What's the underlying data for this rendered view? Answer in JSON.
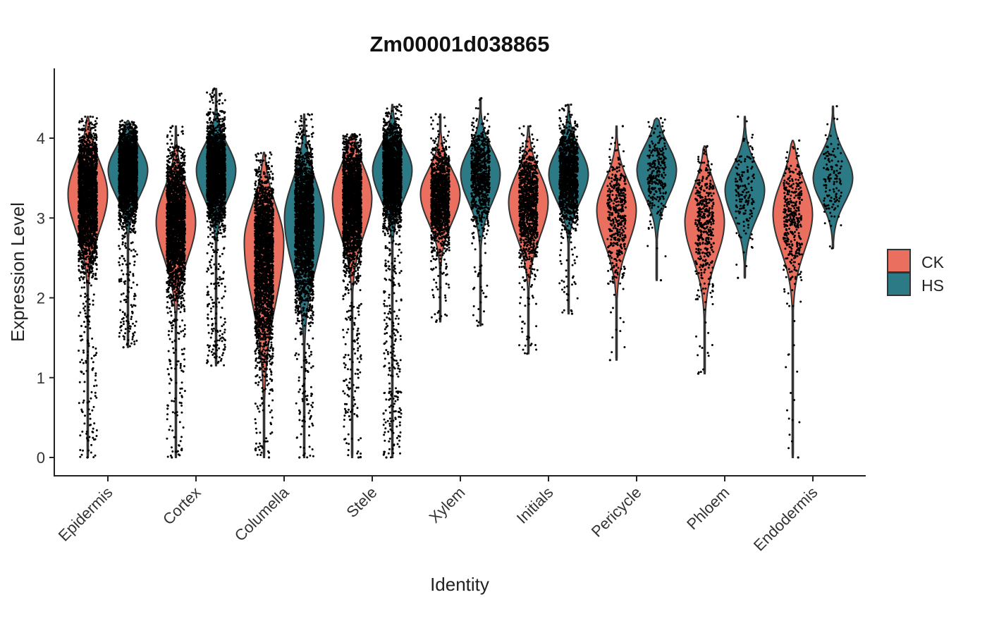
{
  "chart_data": {
    "type": "violin",
    "title": "Zm00001d038865",
    "xlabel": "Identity",
    "ylabel": "Expression Level",
    "ylim": [
      -0.23,
      4.87
    ],
    "yticks": [
      "0",
      "1",
      "2",
      "3",
      "4"
    ],
    "grid": false,
    "legend_position": "right",
    "categories": [
      "Epidermis",
      "Cortex",
      "Columella",
      "Stele",
      "Xylem",
      "Initials",
      "Pericycle",
      "Phloem",
      "Endodermis"
    ],
    "series": [
      {
        "name": "CK",
        "color": "#EB6F5F",
        "violins": [
          {
            "min": 0,
            "max": 4.27,
            "peak": 3.3,
            "sd_low": 0.45,
            "sd_high": 0.4,
            "n_points": 2600
          },
          {
            "min": 0,
            "max": 4.15,
            "peak": 2.95,
            "sd_low": 0.45,
            "sd_high": 0.4,
            "n_points": 2600
          },
          {
            "min": 0,
            "max": 3.82,
            "peak": 2.7,
            "sd_low": 0.75,
            "sd_high": 0.45,
            "n_points": 2600
          },
          {
            "min": 0,
            "max": 4.05,
            "peak": 3.25,
            "sd_low": 0.45,
            "sd_high": 0.38,
            "n_points": 2400
          },
          {
            "min": 1.7,
            "max": 4.3,
            "peak": 3.3,
            "sd_low": 0.35,
            "sd_high": 0.3,
            "n_points": 1400
          },
          {
            "min": 1.3,
            "max": 4.15,
            "peak": 3.2,
            "sd_low": 0.42,
            "sd_high": 0.35,
            "n_points": 1100
          },
          {
            "min": 1.22,
            "max": 4.15,
            "peak": 3.1,
            "sd_low": 0.42,
            "sd_high": 0.35,
            "n_points": 420
          },
          {
            "min": 1.05,
            "max": 3.9,
            "peak": 2.95,
            "sd_low": 0.45,
            "sd_high": 0.4,
            "n_points": 420
          },
          {
            "min": 0,
            "max": 3.97,
            "peak": 3.05,
            "sd_low": 0.45,
            "sd_high": 0.4,
            "n_points": 380
          }
        ]
      },
      {
        "name": "HS",
        "color": "#2B7A86",
        "violins": [
          {
            "min": 1.38,
            "max": 4.22,
            "peak": 3.6,
            "sd_low": 0.32,
            "sd_high": 0.28,
            "n_points": 2600
          },
          {
            "min": 1.15,
            "max": 4.62,
            "peak": 3.6,
            "sd_low": 0.35,
            "sd_high": 0.3,
            "n_points": 2600
          },
          {
            "min": 0,
            "max": 4.3,
            "peak": 3.0,
            "sd_low": 0.6,
            "sd_high": 0.45,
            "n_points": 2400
          },
          {
            "min": 0,
            "max": 4.42,
            "peak": 3.6,
            "sd_low": 0.35,
            "sd_high": 0.3,
            "n_points": 2400
          },
          {
            "min": 1.65,
            "max": 4.5,
            "peak": 3.55,
            "sd_low": 0.35,
            "sd_high": 0.3,
            "n_points": 800
          },
          {
            "min": 1.8,
            "max": 4.42,
            "peak": 3.55,
            "sd_low": 0.33,
            "sd_high": 0.3,
            "n_points": 1300
          },
          {
            "min": 2.22,
            "max": 4.25,
            "peak": 3.6,
            "sd_low": 0.33,
            "sd_high": 0.3,
            "n_points": 260
          },
          {
            "min": 2.25,
            "max": 4.27,
            "peak": 3.35,
            "sd_low": 0.35,
            "sd_high": 0.3,
            "n_points": 160
          },
          {
            "min": 2.62,
            "max": 4.4,
            "peak": 3.5,
            "sd_low": 0.3,
            "sd_high": 0.3,
            "n_points": 130
          }
        ]
      }
    ]
  }
}
